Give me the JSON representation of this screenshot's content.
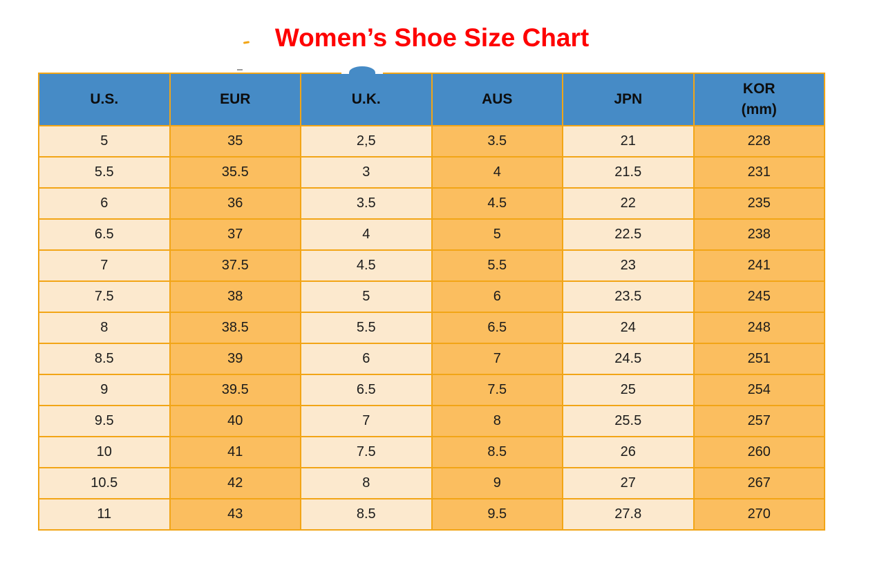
{
  "title": {
    "text": "Women’s Shoe Size Chart",
    "color": "#fe0000"
  },
  "colors": {
    "header_bg": "#468BC6",
    "cell_light": "#FCE9CE",
    "cell_orange": "#FBBE5F",
    "border": "#F2A516",
    "text": "#1b1b1b"
  },
  "chart_data": {
    "type": "table",
    "title": "Women’s Shoe Size Chart",
    "columns": [
      {
        "key": "us",
        "label": "U.S."
      },
      {
        "key": "eur",
        "label": "EUR"
      },
      {
        "key": "uk",
        "label": "U.K."
      },
      {
        "key": "aus",
        "label": "AUS"
      },
      {
        "key": "jpn",
        "label": "JPN"
      },
      {
        "key": "kor",
        "label": "KOR",
        "sublabel": "(mm)"
      }
    ],
    "rows": [
      [
        "5",
        "35",
        "2,5",
        "3.5",
        "21",
        "228"
      ],
      [
        "5.5",
        "35.5",
        "3",
        "4",
        "21.5",
        "231"
      ],
      [
        "6",
        "36",
        "3.5",
        "4.5",
        "22",
        "235"
      ],
      [
        "6.5",
        "37",
        "4",
        "5",
        "22.5",
        "238"
      ],
      [
        "7",
        "37.5",
        "4.5",
        "5.5",
        "23",
        "241"
      ],
      [
        "7.5",
        "38",
        "5",
        "6",
        "23.5",
        "245"
      ],
      [
        "8",
        "38.5",
        "5.5",
        "6.5",
        "24",
        "248"
      ],
      [
        "8.5",
        "39",
        "6",
        "7",
        "24.5",
        "251"
      ],
      [
        "9",
        "39.5",
        "6.5",
        "7.5",
        "25",
        "254"
      ],
      [
        "9.5",
        "40",
        "7",
        "8",
        "25.5",
        "257"
      ],
      [
        "10",
        "41",
        "7.5",
        "8.5",
        "26",
        "260"
      ],
      [
        "10.5",
        "42",
        "8",
        "9",
        "27",
        "267"
      ],
      [
        "11",
        "43",
        "8.5",
        "9.5",
        "27.8",
        "270"
      ]
    ],
    "column_fill_pattern": [
      "light",
      "orange",
      "light",
      "orange",
      "light",
      "orange"
    ]
  }
}
